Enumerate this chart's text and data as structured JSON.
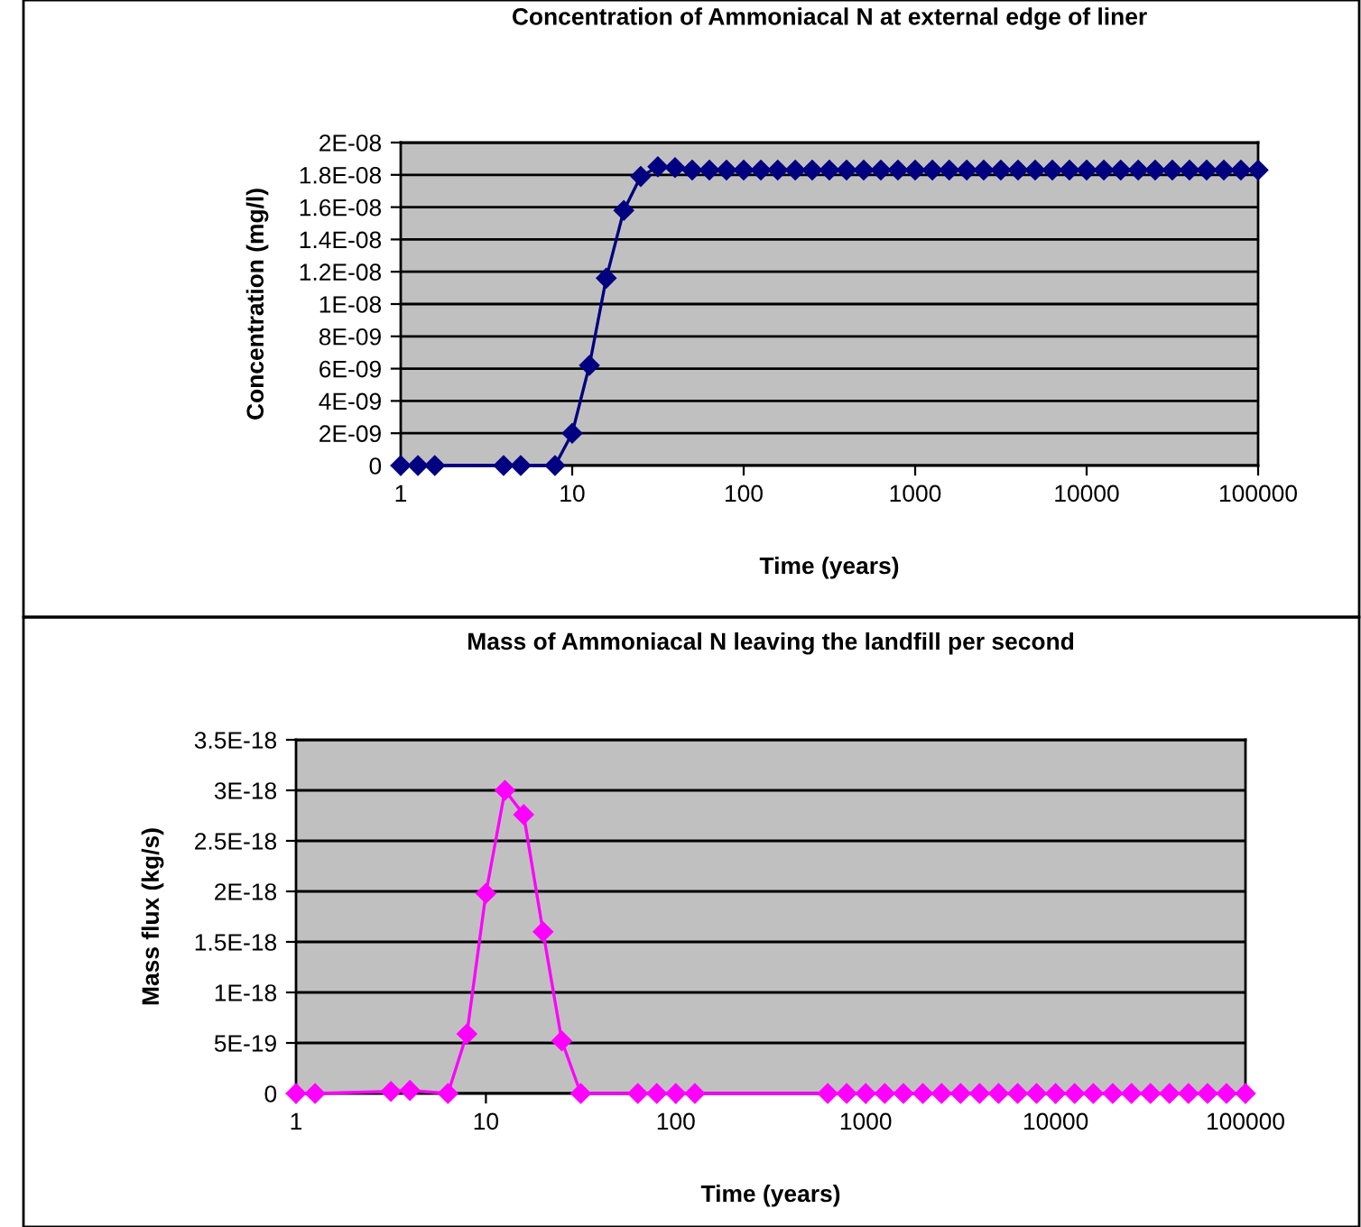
{
  "chart_data": [
    {
      "type": "line",
      "title": "Concentration of Ammoniacal N at external edge of liner",
      "xlabel": "Time (years)",
      "ylabel": "Concentration (mg/l)",
      "log": "x",
      "grid": "y",
      "marker": "diamond",
      "line_style": "solid",
      "xlim": [
        1,
        100000
      ],
      "xticks": [
        1,
        10,
        100,
        1000,
        10000,
        100000
      ],
      "ylim": [
        0,
        2e-08
      ],
      "yticks": [
        {
          "value": 0,
          "label": "0"
        },
        {
          "value": 2e-09,
          "label": "2E-09"
        },
        {
          "value": 4e-09,
          "label": "4E-09"
        },
        {
          "value": 6e-09,
          "label": "6E-09"
        },
        {
          "value": 8e-09,
          "label": "8E-09"
        },
        {
          "value": 1e-08,
          "label": "1E-08"
        },
        {
          "value": 1.2e-08,
          "label": "1.2E-08"
        },
        {
          "value": 1.4e-08,
          "label": "1.4E-08"
        },
        {
          "value": 1.6e-08,
          "label": "1.6E-08"
        },
        {
          "value": 1.8e-08,
          "label": "1.8E-08"
        },
        {
          "value": 2e-08,
          "label": "2E-08"
        }
      ],
      "x": [
        1,
        1.26,
        1.58,
        3.98,
        5.01,
        7.94,
        10,
        12.6,
        15.8,
        20,
        25.1,
        31.6,
        39.8,
        50.1,
        63.1,
        79.4,
        100,
        126,
        158,
        200,
        251,
        316,
        398,
        501,
        631,
        794,
        1000,
        1260,
        1580,
        2000,
        2510,
        3160,
        3980,
        5010,
        6310,
        7940,
        10000,
        12600,
        15800,
        20000,
        25100,
        31600,
        39800,
        50100,
        63100,
        79400,
        100000
      ],
      "series": [
        {
          "color": "#000080",
          "values": [
            0,
            0,
            0,
            0,
            0,
            0,
            2e-09,
            6.2e-09,
            1.16e-08,
            1.58e-08,
            1.79e-08,
            1.85e-08,
            1.845e-08,
            1.83e-08,
            1.83e-08,
            1.83e-08,
            1.83e-08,
            1.83e-08,
            1.83e-08,
            1.83e-08,
            1.83e-08,
            1.83e-08,
            1.83e-08,
            1.83e-08,
            1.83e-08,
            1.83e-08,
            1.83e-08,
            1.83e-08,
            1.83e-08,
            1.83e-08,
            1.83e-08,
            1.83e-08,
            1.83e-08,
            1.83e-08,
            1.83e-08,
            1.83e-08,
            1.83e-08,
            1.83e-08,
            1.83e-08,
            1.83e-08,
            1.83e-08,
            1.83e-08,
            1.83e-08,
            1.83e-08,
            1.83e-08,
            1.83e-08,
            1.83e-08
          ]
        }
      ]
    },
    {
      "type": "line",
      "title": "Mass of Ammoniacal N leaving the landfill per second",
      "xlabel": "Time (years)",
      "ylabel": "Mass flux (kg/s)",
      "log": "x",
      "grid": "y",
      "marker": "diamond",
      "line_style": "solid",
      "xlim": [
        1,
        100000
      ],
      "xticks": [
        1,
        10,
        100,
        1000,
        10000,
        100000
      ],
      "ylim": [
        0,
        3.5e-18
      ],
      "yticks": [
        {
          "value": 0,
          "label": "0"
        },
        {
          "value": 5e-19,
          "label": "5E-19"
        },
        {
          "value": 1e-18,
          "label": "1E-18"
        },
        {
          "value": 1.5e-18,
          "label": "1.5E-18"
        },
        {
          "value": 2e-18,
          "label": "2E-18"
        },
        {
          "value": 2.5e-18,
          "label": "2.5E-18"
        },
        {
          "value": 3e-18,
          "label": "3E-18"
        },
        {
          "value": 3.5e-18,
          "label": "3.5E-18"
        }
      ],
      "x": [
        1,
        1.26,
        3.16,
        3.98,
        6.31,
        7.94,
        10,
        12.6,
        15.8,
        20,
        25.1,
        31.6,
        63.1,
        79.4,
        100,
        126,
        631,
        794,
        1000,
        1260,
        1580,
        2000,
        2510,
        3160,
        3980,
        5010,
        6310,
        7940,
        10000,
        12600,
        15800,
        20000,
        25100,
        31600,
        39800,
        50100,
        63100,
        79400,
        100000
      ],
      "series": [
        {
          "color": "#ff00ff",
          "values": [
            0,
            0,
            2e-20,
            3e-20,
            0,
            5.9e-19,
            1.98e-18,
            3e-18,
            2.76e-18,
            1.6e-18,
            5.2e-19,
            0,
            0,
            0,
            0,
            0,
            0,
            0,
            0,
            0,
            0,
            0,
            0,
            0,
            0,
            0,
            0,
            0,
            0,
            0,
            0,
            0,
            0,
            0,
            0,
            0,
            0,
            0,
            0
          ]
        }
      ]
    }
  ]
}
